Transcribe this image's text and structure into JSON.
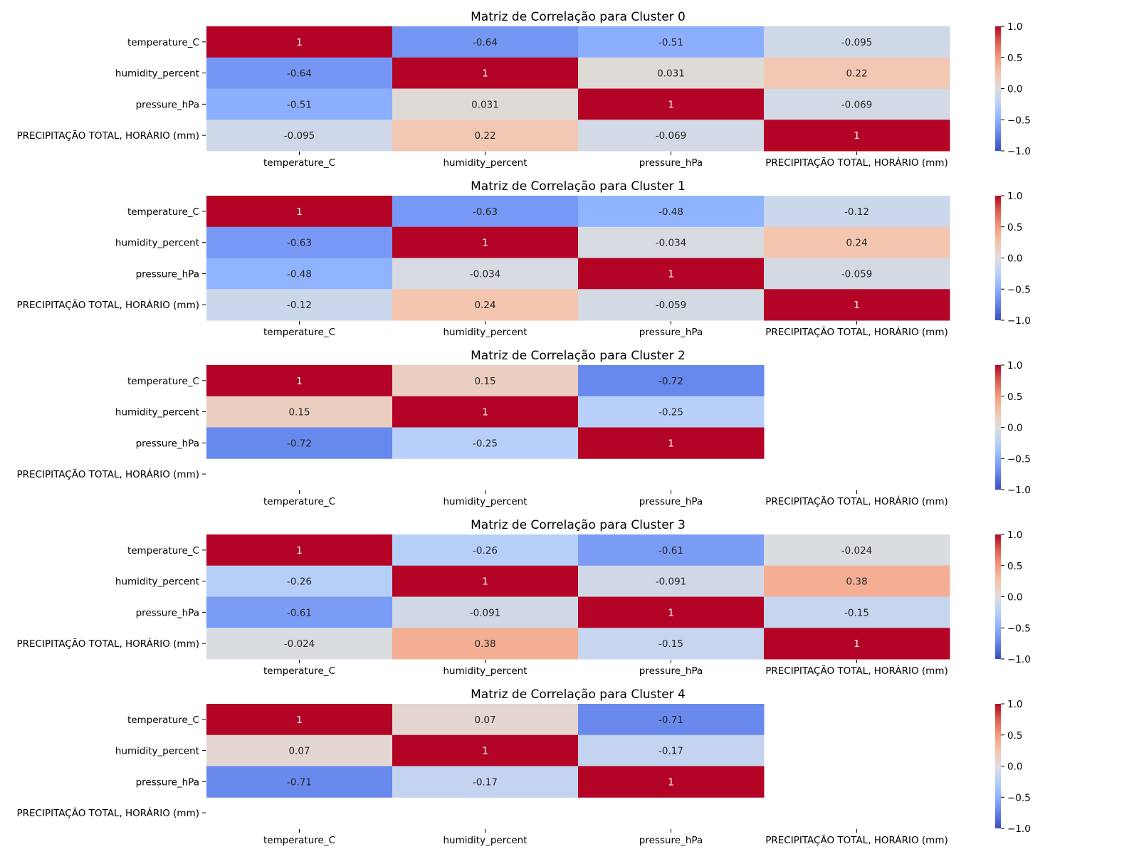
{
  "chart_data": [
    {
      "type": "heatmap",
      "title": "Matriz de Correlação para Cluster 0",
      "rows": [
        "temperature_C",
        "humidity_percent",
        "pressure_hPa",
        "PRECIPITAÇÃO TOTAL, HORÁRIO (mm)"
      ],
      "cols": [
        "temperature_C",
        "humidity_percent",
        "pressure_hPa",
        "PRECIPITAÇÃO TOTAL, HORÁRIO (mm)"
      ],
      "values": [
        [
          1,
          -0.64,
          -0.51,
          -0.095
        ],
        [
          -0.64,
          1,
          0.031,
          0.22
        ],
        [
          -0.51,
          0.031,
          1,
          -0.069
        ],
        [
          -0.095,
          0.22,
          -0.069,
          1
        ]
      ],
      "labels": [
        [
          "1",
          "-0.64",
          "-0.51",
          "-0.095"
        ],
        [
          "-0.64",
          "1",
          "0.031",
          "0.22"
        ],
        [
          "-0.51",
          "0.031",
          "1",
          "-0.069"
        ],
        [
          "-0.095",
          "0.22",
          "-0.069",
          "1"
        ]
      ],
      "colorbar": {
        "range": [
          -1.0,
          1.0
        ],
        "ticks": [
          "1.0",
          "0.5",
          "0.0",
          "−0.5",
          "−1.0"
        ],
        "colormap": "coolwarm"
      }
    },
    {
      "type": "heatmap",
      "title": "Matriz de Correlação para Cluster 1",
      "rows": [
        "temperature_C",
        "humidity_percent",
        "pressure_hPa",
        "PRECIPITAÇÃO TOTAL, HORÁRIO (mm)"
      ],
      "cols": [
        "temperature_C",
        "humidity_percent",
        "pressure_hPa",
        "PRECIPITAÇÃO TOTAL, HORÁRIO (mm)"
      ],
      "values": [
        [
          1,
          -0.63,
          -0.48,
          -0.12
        ],
        [
          -0.63,
          1,
          -0.034,
          0.24
        ],
        [
          -0.48,
          -0.034,
          1,
          -0.059
        ],
        [
          -0.12,
          0.24,
          -0.059,
          1
        ]
      ],
      "labels": [
        [
          "1",
          "-0.63",
          "-0.48",
          "-0.12"
        ],
        [
          "-0.63",
          "1",
          "-0.034",
          "0.24"
        ],
        [
          "-0.48",
          "-0.034",
          "1",
          "-0.059"
        ],
        [
          "-0.12",
          "0.24",
          "-0.059",
          "1"
        ]
      ],
      "colorbar": {
        "range": [
          -1.0,
          1.0
        ],
        "ticks": [
          "1.0",
          "0.5",
          "0.0",
          "−0.5",
          "−1.0"
        ],
        "colormap": "coolwarm"
      }
    },
    {
      "type": "heatmap",
      "title": "Matriz de Correlação para Cluster 2",
      "rows": [
        "temperature_C",
        "humidity_percent",
        "pressure_hPa",
        "PRECIPITAÇÃO TOTAL, HORÁRIO (mm)"
      ],
      "cols": [
        "temperature_C",
        "humidity_percent",
        "pressure_hPa",
        "PRECIPITAÇÃO TOTAL, HORÁRIO (mm)"
      ],
      "values": [
        [
          1,
          0.15,
          -0.72,
          null
        ],
        [
          0.15,
          1,
          -0.25,
          null
        ],
        [
          -0.72,
          -0.25,
          1,
          null
        ],
        [
          null,
          null,
          null,
          null
        ]
      ],
      "labels": [
        [
          "1",
          "0.15",
          "-0.72",
          ""
        ],
        [
          "0.15",
          "1",
          "-0.25",
          ""
        ],
        [
          "-0.72",
          "-0.25",
          "1",
          ""
        ],
        [
          "",
          "",
          "",
          ""
        ]
      ],
      "colorbar": {
        "range": [
          -1.0,
          1.0
        ],
        "ticks": [
          "1.0",
          "0.5",
          "0.0",
          "−0.5",
          "−1.0"
        ],
        "colormap": "coolwarm"
      }
    },
    {
      "type": "heatmap",
      "title": "Matriz de Correlação para Cluster 3",
      "rows": [
        "temperature_C",
        "humidity_percent",
        "pressure_hPa",
        "PRECIPITAÇÃO TOTAL, HORÁRIO (mm)"
      ],
      "cols": [
        "temperature_C",
        "humidity_percent",
        "pressure_hPa",
        "PRECIPITAÇÃO TOTAL, HORÁRIO (mm)"
      ],
      "values": [
        [
          1,
          -0.26,
          -0.61,
          -0.024
        ],
        [
          -0.26,
          1,
          -0.091,
          0.38
        ],
        [
          -0.61,
          -0.091,
          1,
          -0.15
        ],
        [
          -0.024,
          0.38,
          -0.15,
          1
        ]
      ],
      "labels": [
        [
          "1",
          "-0.26",
          "-0.61",
          "-0.024"
        ],
        [
          "-0.26",
          "1",
          "-0.091",
          "0.38"
        ],
        [
          "-0.61",
          "-0.091",
          "1",
          "-0.15"
        ],
        [
          "-0.024",
          "0.38",
          "-0.15",
          "1"
        ]
      ],
      "colorbar": {
        "range": [
          -1.0,
          1.0
        ],
        "ticks": [
          "1.0",
          "0.5",
          "0.0",
          "−0.5",
          "−1.0"
        ],
        "colormap": "coolwarm"
      }
    },
    {
      "type": "heatmap",
      "title": "Matriz de Correlação para Cluster 4",
      "rows": [
        "temperature_C",
        "humidity_percent",
        "pressure_hPa",
        "PRECIPITAÇÃO TOTAL, HORÁRIO (mm)"
      ],
      "cols": [
        "temperature_C",
        "humidity_percent",
        "pressure_hPa",
        "PRECIPITAÇÃO TOTAL, HORÁRIO (mm)"
      ],
      "values": [
        [
          1,
          0.07,
          -0.71,
          null
        ],
        [
          0.07,
          1,
          -0.17,
          null
        ],
        [
          -0.71,
          -0.17,
          1,
          null
        ],
        [
          null,
          null,
          null,
          null
        ]
      ],
      "labels": [
        [
          "1",
          "0.07",
          "-0.71",
          ""
        ],
        [
          "0.07",
          "1",
          "-0.17",
          ""
        ],
        [
          "-0.71",
          "-0.17",
          "1",
          ""
        ],
        [
          "",
          "",
          "",
          ""
        ]
      ],
      "colorbar": {
        "range": [
          -1.0,
          1.0
        ],
        "ticks": [
          "1.0",
          "0.5",
          "0.0",
          "−0.5",
          "−1.0"
        ],
        "colormap": "coolwarm"
      }
    }
  ]
}
